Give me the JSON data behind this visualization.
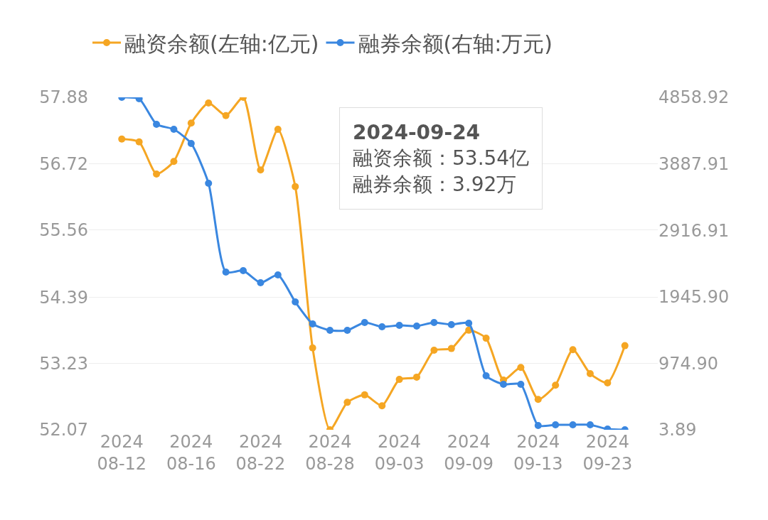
{
  "chart_data": {
    "type": "line",
    "categories": [
      "2024\n08-12",
      null,
      null,
      null,
      "2024\n08-16",
      null,
      null,
      null,
      "2024\n08-22",
      null,
      null,
      null,
      "2024\n08-28",
      null,
      null,
      null,
      "2024\n09-03",
      null,
      null,
      null,
      "2024\n09-09",
      null,
      null,
      null,
      "2024\n09-13",
      null,
      null,
      null,
      "2024\n09-23",
      null
    ],
    "series": [
      {
        "name": "融资余额(左轴:亿元)",
        "color": "#f5a623",
        "values": [
          57.15,
          57.1,
          56.54,
          56.76,
          57.43,
          57.78,
          57.56,
          57.88,
          56.61,
          57.32,
          56.32,
          53.5,
          52.07,
          52.55,
          52.68,
          52.49,
          52.95,
          52.99,
          53.46,
          53.49,
          53.81,
          53.67,
          52.94,
          53.16,
          52.6,
          52.85,
          53.47,
          53.05,
          52.89,
          53.54
        ]
      },
      {
        "name": "融券余额(右轴:万元)",
        "color": "#3a87e0",
        "axis": "y2",
        "values": [
          4858.92,
          4838,
          4465,
          4392,
          4185,
          3604,
          2307,
          2328,
          2151,
          2265,
          1871,
          1550,
          1456,
          1456,
          1570,
          1508,
          1529,
          1519,
          1570,
          1539,
          1560,
          792,
          668,
          668,
          66,
          77,
          77,
          77,
          14,
          3.92
        ]
      }
    ],
    "ylim": [
      52.07,
      57.88
    ],
    "yticks": [
      52.07,
      53.23,
      54.39,
      55.56,
      56.72,
      57.88
    ],
    "y2lim": [
      3.89,
      4858.92
    ],
    "y2ticks": [
      3.89,
      {
        "value": 974.9,
        "label": "974.90"
      },
      {
        "value": 1945.9,
        "label": "1945.90"
      },
      2916.91,
      3887.91,
      4858.92
    ],
    "annotations": [
      "2024-09-24",
      "融资余额：53.54亿",
      "融券余额：3.92万"
    ],
    "grid": "y",
    "legend": "top left",
    "marker": "circle",
    "line_style": "solid"
  }
}
